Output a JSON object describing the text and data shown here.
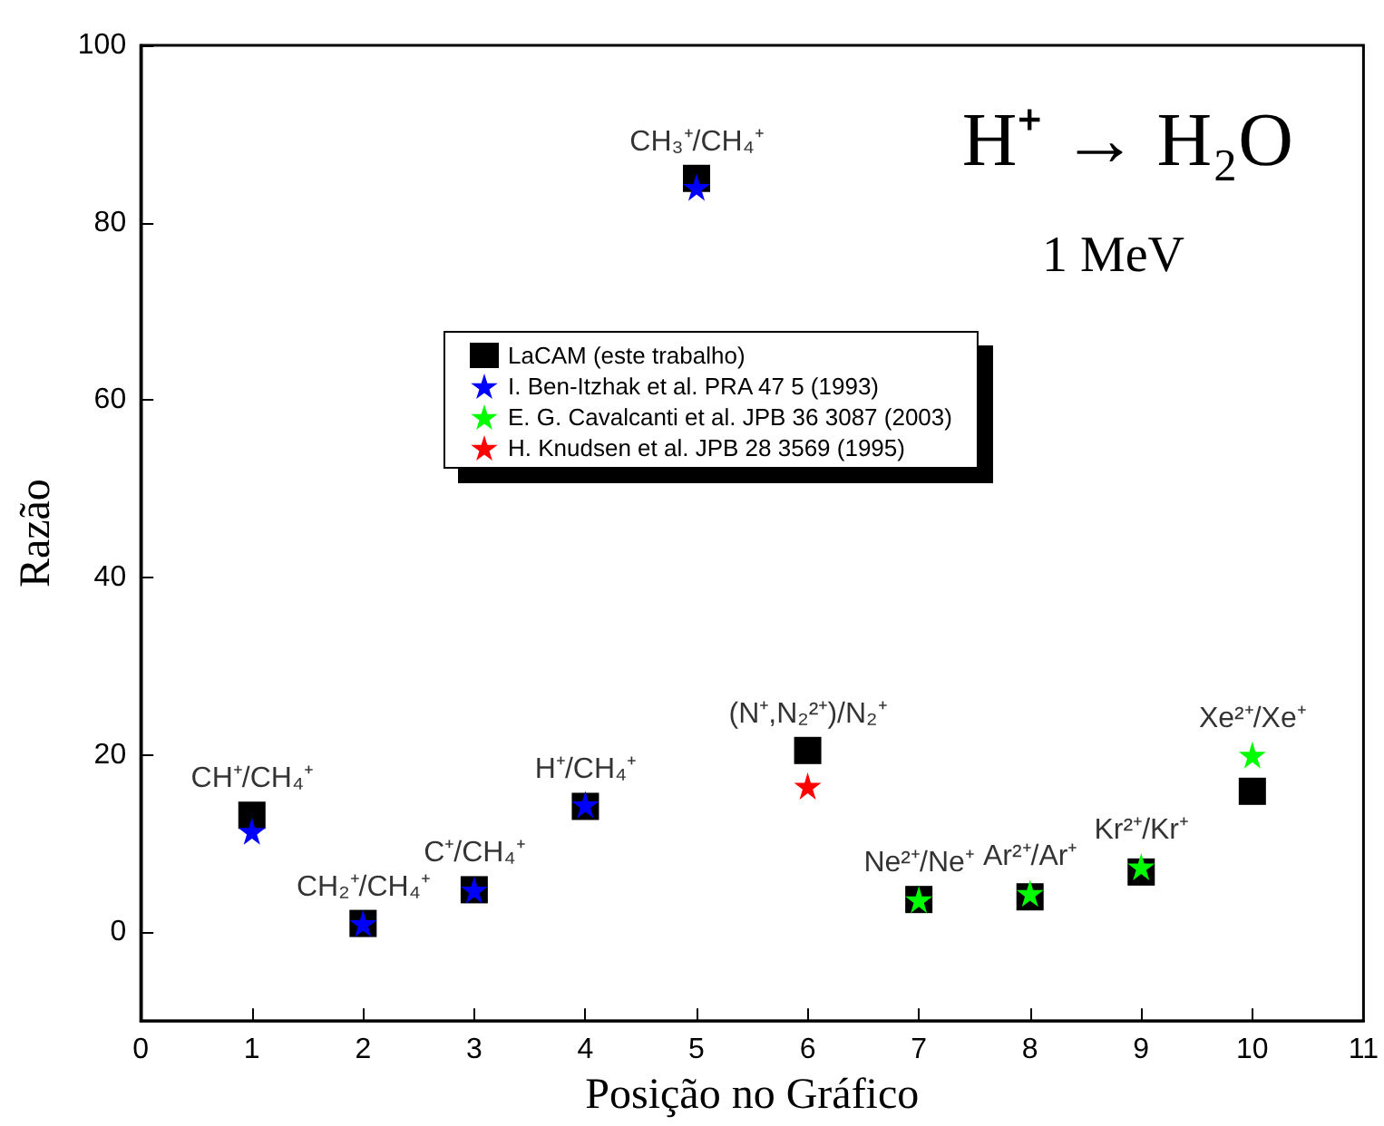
{
  "chart_data": {
    "type": "scatter",
    "title": "H⁺ → H₂O",
    "subtitle": "1 MeV",
    "xlabel": "Posição no Gráfico",
    "ylabel": "Razão",
    "xlim": [
      0,
      11
    ],
    "xticks": [
      0,
      1,
      2,
      3,
      4,
      5,
      6,
      7,
      8,
      9,
      10,
      11
    ],
    "ylim": [
      -10,
      100
    ],
    "yticks": [
      0,
      20,
      40,
      60,
      80,
      100
    ],
    "grid": false,
    "legend": "top",
    "series": [
      {
        "name": "LaCAM (este trabalho)",
        "color": "#000000",
        "marker": "square",
        "x": [
          1,
          2,
          3,
          4,
          5,
          6,
          7,
          8,
          9,
          10
        ],
        "values": [
          13.2,
          1,
          4.8,
          14.2,
          85,
          20.5,
          3.7,
          4,
          6.8,
          15.9
        ]
      },
      {
        "name": "I. Ben-Itzhak et al. PRA 47 5 (1993)",
        "color": "#0000ff",
        "marker": "star",
        "x": [
          1,
          2,
          3,
          4,
          5
        ],
        "values": [
          11.4,
          1,
          4.8,
          14.4,
          84
        ]
      },
      {
        "name": "E. G. Cavalcanti et al. JPB 36 3087 (2003)",
        "color": "#00ff00",
        "marker": "star",
        "x": [
          7,
          8,
          9,
          10
        ],
        "values": [
          3.7,
          4.4,
          7.4,
          20
        ]
      },
      {
        "name": "H. Knudsen et al. JPB 28 3569 (1995)",
        "color": "#ff0000",
        "marker": "star",
        "x": [
          6
        ],
        "values": [
          16.5
        ]
      }
    ],
    "annotations": [
      {
        "text": "CH⁺/CH₄⁺",
        "x": 1,
        "y": 13.2
      },
      {
        "text": "CH₂⁺/CH₄⁺",
        "x": 2,
        "y": 1
      },
      {
        "text": "C⁺/CH₄⁺",
        "x": 3,
        "y": 4.8
      },
      {
        "text": "H⁺/CH₄⁺",
        "x": 4,
        "y": 14.2
      },
      {
        "text": "CH₃⁺/CH₄⁺",
        "x": 5,
        "y": 85
      },
      {
        "text": "(N⁺,N₂²⁺)/N₂⁺",
        "x": 6,
        "y": 20.5
      },
      {
        "text": "Ne²⁺/Ne⁺",
        "x": 7,
        "y": 3.7
      },
      {
        "text": "Ar²⁺/Ar⁺",
        "x": 8,
        "y": 4.4
      },
      {
        "text": "Kr²⁺/Kr⁺",
        "x": 9,
        "y": 7.4
      },
      {
        "text": "Xe²⁺/Xe⁺",
        "x": 10,
        "y": 20
      }
    ]
  }
}
